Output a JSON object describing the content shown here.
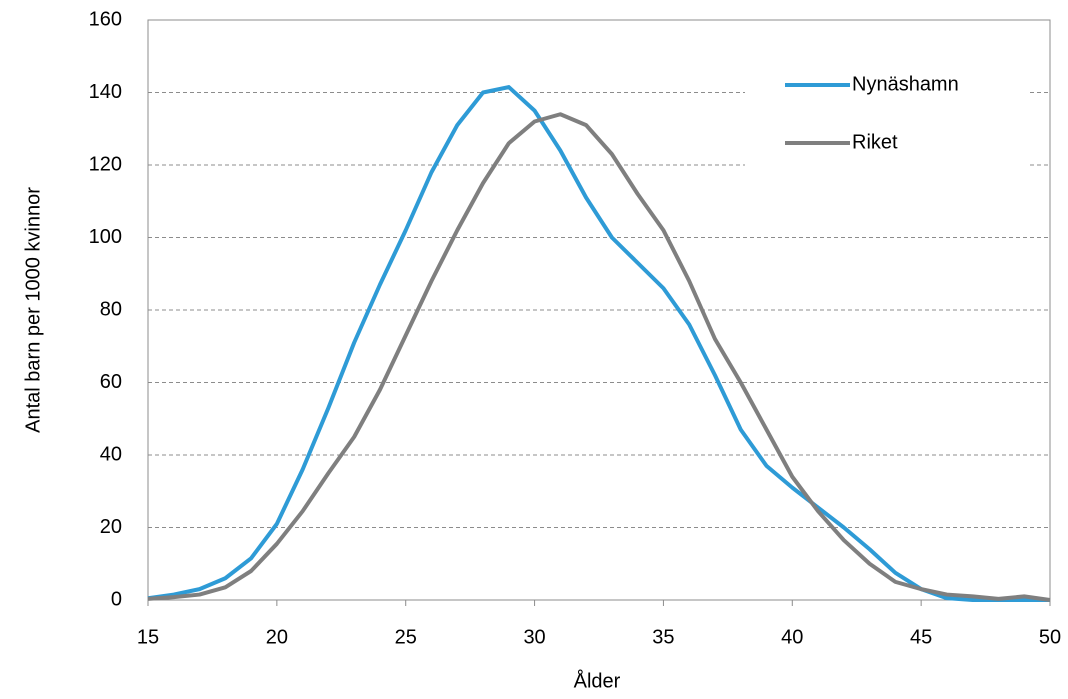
{
  "chart_data": {
    "type": "line",
    "xlabel": "Ålder",
    "ylabel": "Antal barn per 1000 kvinnor",
    "x": [
      15,
      16,
      17,
      18,
      19,
      20,
      21,
      22,
      23,
      24,
      25,
      26,
      27,
      28,
      29,
      30,
      31,
      32,
      33,
      34,
      35,
      36,
      37,
      38,
      39,
      40,
      41,
      42,
      43,
      44,
      45,
      46,
      47,
      48,
      49,
      50
    ],
    "series": [
      {
        "name": "Nynäshamn",
        "color": "#2e9bd6",
        "values": [
          0.5,
          1.5,
          3,
          6,
          11.5,
          21,
          36,
          53,
          71,
          87,
          102,
          118,
          131,
          140,
          141.5,
          135,
          124,
          111,
          100,
          93,
          86,
          76,
          62,
          47,
          37,
          31,
          25.5,
          20,
          14,
          7.5,
          3,
          0.5,
          0,
          0,
          0,
          0
        ]
      },
      {
        "name": "Riket",
        "color": "#7f7f7f",
        "values": [
          0.3,
          0.8,
          1.5,
          3.5,
          8,
          15.5,
          24.5,
          35,
          45,
          58,
          73,
          88,
          102,
          115,
          126,
          132,
          134,
          131,
          123,
          112,
          102,
          88,
          72,
          60,
          47,
          34,
          24.5,
          16.5,
          10,
          5,
          3,
          1.5,
          1,
          0.3,
          1,
          0
        ]
      }
    ],
    "xlim": [
      15,
      50
    ],
    "xticks": [
      15,
      20,
      25,
      30,
      35,
      40,
      45,
      50
    ],
    "ylim": [
      0,
      160
    ],
    "yticks": [
      0,
      20,
      40,
      60,
      80,
      100,
      120,
      140,
      160
    ],
    "grid": true,
    "legend": "upper right"
  }
}
